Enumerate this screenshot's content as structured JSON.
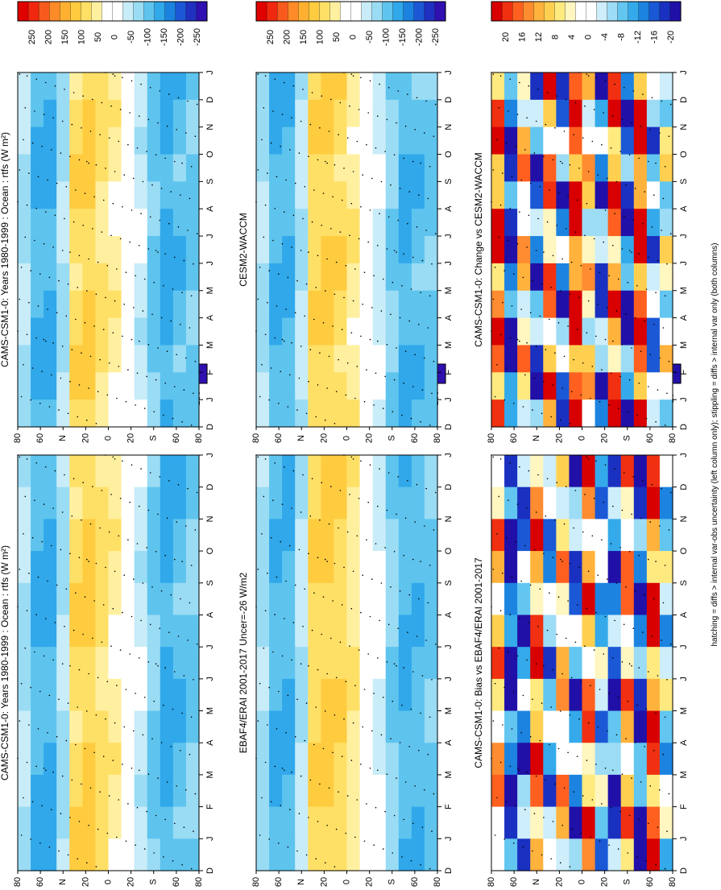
{
  "figure": {
    "footer": "hatching = diffs > internal var-obs uncertainty (left column only); stippling = diffs > internal var only (both columns)",
    "orientation": "rotated-90-ccw"
  },
  "colors": {
    "full_scale": [
      "#e00000",
      "#f02810",
      "#f85a1e",
      "#ff8a28",
      "#ffb030",
      "#ffcc40",
      "#ffe066",
      "#fff0a0",
      "#ffffff",
      "#ffffff",
      "#c8ecf8",
      "#9adcf4",
      "#5ec4ee",
      "#30a8ea",
      "#1c82e0",
      "#1c58d6",
      "#2030c0",
      "#3010b0"
    ],
    "diff_scale": [
      "#d80000",
      "#f03010",
      "#ff6020",
      "#ff8c30",
      "#ffb23c",
      "#ffd050",
      "#ffea80",
      "#fff6c0",
      "#ffffff",
      "#ffffff",
      "#cdeefa",
      "#9ddcf5",
      "#62c6f0",
      "#34aaea",
      "#1c84e0",
      "#1a58d6",
      "#1a30c0",
      "#2010a8"
    ]
  },
  "chart_data": [
    {
      "type": "heatmap",
      "id": "top-left",
      "title": "CAMS-CSM1-0: Years 1980-1999 : Ocean : rtfs (W m²)",
      "x_tick_labels": [
        "D",
        "J",
        "F",
        "M",
        "A",
        "M",
        "J",
        "J",
        "A",
        "S",
        "O",
        "N",
        "D",
        "J"
      ],
      "y_tick_labels": [
        "80",
        "60",
        "N",
        "20",
        "0",
        "20",
        "S",
        "60",
        "80"
      ],
      "colorbar_labels": [
        "250",
        "200",
        "150",
        "100",
        "50",
        "0",
        "-50",
        "-100",
        "-150",
        "-200",
        "-250"
      ],
      "scale": "full_scale",
      "latitude_range": [
        -90,
        90
      ],
      "values_by_latitude": [
        -60,
        -110,
        -115,
        -60,
        70,
        85,
        65,
        40,
        0,
        -40,
        -90,
        -120,
        -100,
        -90
      ]
    },
    {
      "type": "heatmap",
      "id": "top-right",
      "title": "CAMS-CSM1-0: Years 1980-1999 : Ocean : rtfs (W m²)",
      "x_tick_labels": [
        "D",
        "J",
        "F",
        "M",
        "A",
        "M",
        "J",
        "J",
        "A",
        "S",
        "O",
        "N",
        "D",
        "J"
      ],
      "y_tick_labels": [
        "80",
        "60",
        "N",
        "20",
        "0",
        "20",
        "S",
        "60",
        "80"
      ],
      "colorbar_labels": [
        "250",
        "200",
        "150",
        "100",
        "50",
        "0",
        "-50",
        "-100",
        "-150",
        "-200",
        "-250"
      ],
      "scale": "full_scale",
      "latitude_range": [
        -90,
        90
      ],
      "values_by_latitude": [
        -60,
        -110,
        -115,
        -60,
        70,
        85,
        65,
        40,
        0,
        -40,
        -90,
        -120,
        -100,
        -90
      ]
    },
    {
      "type": "heatmap",
      "id": "middle-left",
      "title": "EBAF4/ERAI 2001-2017 Uncer=-26 W/m2",
      "x_tick_labels": [
        "D",
        "J",
        "F",
        "M",
        "A",
        "M",
        "J",
        "J",
        "A",
        "S",
        "O",
        "N",
        "D",
        "J"
      ],
      "y_tick_labels": [
        "80",
        "60",
        "N",
        "20",
        "0",
        "20",
        "S",
        "60",
        "80"
      ],
      "colorbar_labels": [
        "250",
        "200",
        "150",
        "100",
        "50",
        "0",
        "-50",
        "-100",
        "-150",
        "-200",
        "-250"
      ],
      "scale": "full_scale",
      "latitude_range": [
        -90,
        90
      ],
      "values_by_latitude": [
        -60,
        -100,
        -110,
        -50,
        75,
        90,
        75,
        50,
        10,
        -30,
        -80,
        -110,
        -100,
        -90
      ]
    },
    {
      "type": "heatmap",
      "id": "middle-right",
      "title": "CESM2-WACCM",
      "x_tick_labels": [
        "D",
        "J",
        "F",
        "M",
        "A",
        "M",
        "J",
        "J",
        "A",
        "S",
        "O",
        "N",
        "D",
        "J"
      ],
      "y_tick_labels": [
        "80",
        "60",
        "N",
        "20",
        "0",
        "20",
        "S",
        "60",
        "80"
      ],
      "colorbar_labels": [
        "250",
        "200",
        "150",
        "100",
        "50",
        "0",
        "-50",
        "-100",
        "-150",
        "-200",
        "-250"
      ],
      "scale": "full_scale",
      "latitude_range": [
        -90,
        90
      ],
      "values_by_latitude": [
        -60,
        -110,
        -110,
        -55,
        75,
        85,
        70,
        45,
        5,
        -35,
        -85,
        -115,
        -100,
        -90
      ]
    },
    {
      "type": "heatmap",
      "id": "bottom-left",
      "title": "CAMS-CSM1-0: Bias vs EBAF4/ERAI 2001-2017",
      "x_tick_labels": [
        "D",
        "J",
        "F",
        "M",
        "A",
        "M",
        "J",
        "J",
        "A",
        "S",
        "O",
        "N",
        "D",
        "J"
      ],
      "y_tick_labels": [
        "80",
        "60",
        "N",
        "20",
        "0",
        "20",
        "S",
        "60",
        "80"
      ],
      "colorbar_labels": [
        "20",
        "16",
        "12",
        "8",
        "4",
        "0",
        "-4",
        "-8",
        "-12",
        "-16",
        "-20"
      ],
      "scale": "diff_scale",
      "latitude_range": [
        -90,
        90
      ],
      "values_by_latitude": [
        8,
        -16,
        -10,
        12,
        -8,
        6,
        -10,
        10,
        -6,
        -12,
        8,
        -14,
        14,
        -4
      ]
    },
    {
      "type": "heatmap",
      "id": "bottom-right",
      "title": "CAMS-CSM1-0: Change vs CESM2-WACCM",
      "x_tick_labels": [
        "D",
        "J",
        "F",
        "M",
        "A",
        "M",
        "J",
        "J",
        "A",
        "S",
        "O",
        "N",
        "D",
        "J"
      ],
      "y_tick_labels": [
        "80",
        "60",
        "N",
        "20",
        "0",
        "20",
        "S",
        "60",
        "80"
      ],
      "colorbar_labels": [
        "20",
        "16",
        "12",
        "8",
        "4",
        "0",
        "-4",
        "-8",
        "-12",
        "-16",
        "-20"
      ],
      "scale": "diff_scale",
      "latitude_range": [
        -90,
        90
      ],
      "values_by_latitude": [
        14,
        -16,
        6,
        -12,
        10,
        -10,
        16,
        4,
        -10,
        12,
        -14,
        16,
        -8,
        0
      ]
    }
  ]
}
